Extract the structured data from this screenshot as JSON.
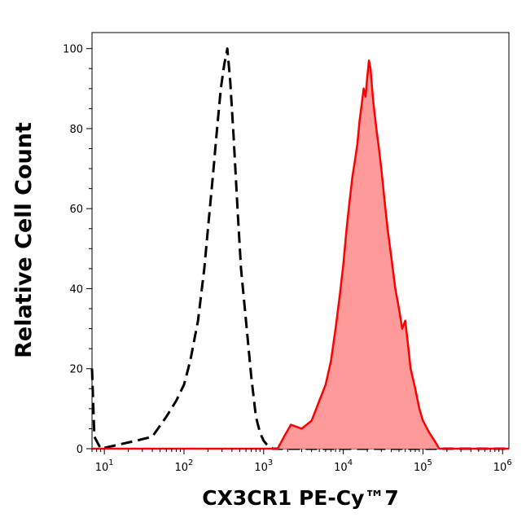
{
  "chart_data": {
    "type": "area",
    "xlabel": "CX3CR1 PE-Cy™7",
    "ylabel": "Relative Cell Count",
    "x_scale": "log",
    "xlim": [
      7,
      1200000
    ],
    "ylim": [
      0,
      104
    ],
    "x_ticks": [
      {
        "value": 10,
        "base": "10",
        "exp": "1"
      },
      {
        "value": 100,
        "base": "10",
        "exp": "2"
      },
      {
        "value": 1000,
        "base": "10",
        "exp": "3"
      },
      {
        "value": 10000,
        "base": "10",
        "exp": "4"
      },
      {
        "value": 100000,
        "base": "10",
        "exp": "5"
      },
      {
        "value": 1000000,
        "base": "10",
        "exp": "6"
      }
    ],
    "y_ticks": [
      0,
      20,
      40,
      60,
      80,
      100
    ],
    "grid": false,
    "legend": "none",
    "series": [
      {
        "style": "dashed-black-outline",
        "color": "#000000",
        "points": [
          [
            7,
            20
          ],
          [
            7.5,
            3
          ],
          [
            9,
            0
          ],
          [
            15,
            1
          ],
          [
            25,
            2
          ],
          [
            40,
            3
          ],
          [
            60,
            8
          ],
          [
            80,
            12
          ],
          [
            100,
            16
          ],
          [
            120,
            22
          ],
          [
            150,
            32
          ],
          [
            180,
            45
          ],
          [
            200,
            55
          ],
          [
            230,
            68
          ],
          [
            260,
            80
          ],
          [
            290,
            90
          ],
          [
            320,
            96
          ],
          [
            350,
            100
          ],
          [
            380,
            92
          ],
          [
            420,
            78
          ],
          [
            470,
            60
          ],
          [
            520,
            45
          ],
          [
            600,
            32
          ],
          [
            700,
            18
          ],
          [
            800,
            8
          ],
          [
            900,
            4
          ],
          [
            1000,
            2
          ],
          [
            1100,
            1
          ],
          [
            1300,
            0
          ],
          [
            1200000,
            0
          ]
        ]
      },
      {
        "style": "filled-red",
        "color": "#ff0000",
        "fill": "#ff9a9a",
        "points": [
          [
            7,
            0
          ],
          [
            1500,
            0
          ],
          [
            1800,
            3
          ],
          [
            2200,
            6
          ],
          [
            3000,
            5
          ],
          [
            4000,
            7
          ],
          [
            5000,
            12
          ],
          [
            6000,
            16
          ],
          [
            7000,
            22
          ],
          [
            8000,
            30
          ],
          [
            9000,
            38
          ],
          [
            10000,
            46
          ],
          [
            11000,
            55
          ],
          [
            12000,
            62
          ],
          [
            13000,
            68
          ],
          [
            14000,
            72
          ],
          [
            15000,
            76
          ],
          [
            16000,
            82
          ],
          [
            17000,
            86
          ],
          [
            18000,
            90
          ],
          [
            19000,
            88
          ],
          [
            20000,
            93
          ],
          [
            21000,
            97
          ],
          [
            22000,
            95
          ],
          [
            23000,
            90
          ],
          [
            24000,
            86
          ],
          [
            26000,
            80
          ],
          [
            28000,
            75
          ],
          [
            30000,
            70
          ],
          [
            33000,
            62
          ],
          [
            36000,
            55
          ],
          [
            40000,
            48
          ],
          [
            45000,
            40
          ],
          [
            50000,
            35
          ],
          [
            55000,
            30
          ],
          [
            60000,
            32
          ],
          [
            65000,
            26
          ],
          [
            70000,
            20
          ],
          [
            80000,
            15
          ],
          [
            90000,
            10
          ],
          [
            100000,
            7
          ],
          [
            120000,
            4
          ],
          [
            140000,
            2
          ],
          [
            160000,
            0
          ],
          [
            1200000,
            0
          ]
        ]
      }
    ]
  }
}
